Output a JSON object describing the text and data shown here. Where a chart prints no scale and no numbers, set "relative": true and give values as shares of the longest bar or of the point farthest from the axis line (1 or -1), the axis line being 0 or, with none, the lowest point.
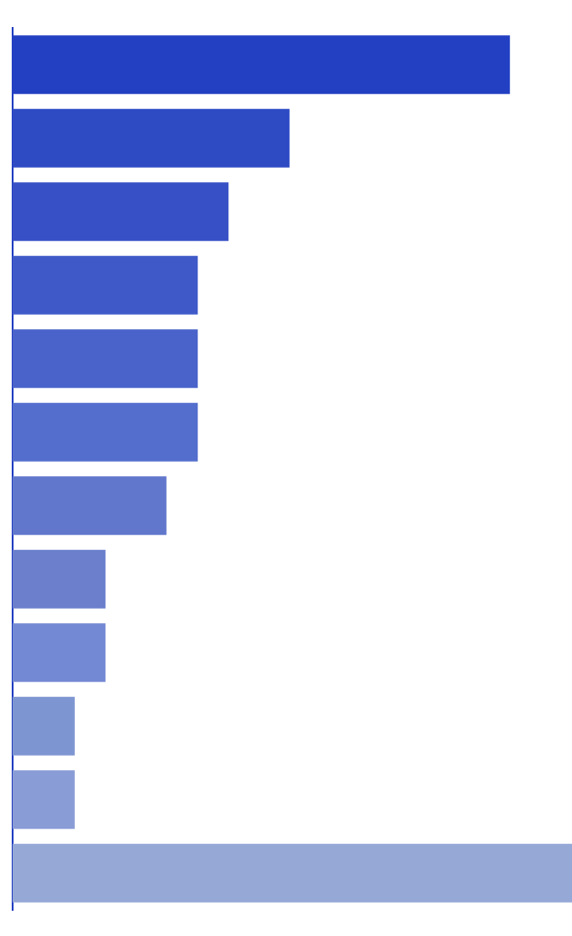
{
  "chart_data": {
    "type": "bar",
    "orientation": "horizontal",
    "relative": true,
    "grid": false,
    "legend": false,
    "categories": [
      null,
      null,
      null,
      null,
      null,
      null,
      null,
      null,
      null,
      null,
      null,
      null
    ],
    "values": [
      0.889,
      0.495,
      0.386,
      0.331,
      0.331,
      0.331,
      0.275,
      0.166,
      0.166,
      0.111,
      0.111,
      1
    ],
    "colors": [
      "#2340c2",
      "#2e4bc4",
      "#3850c5",
      "#3f5ac8",
      "#4963ca",
      "#546ecd",
      "#6177cc",
      "#6b7fcc",
      "#7489d3",
      "#7d95d1",
      "#8a9cd6",
      "#95a8d6"
    ]
  }
}
